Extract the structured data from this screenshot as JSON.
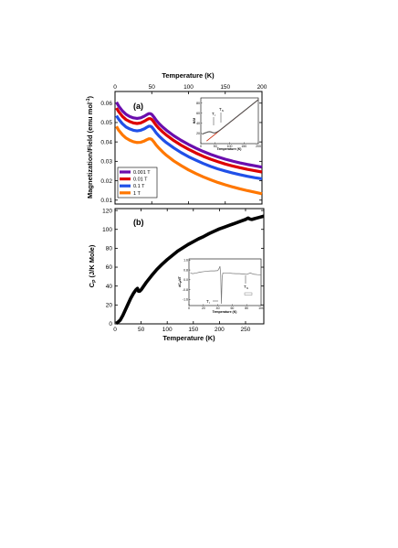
{
  "chart_data": [
    {
      "panel": "(a)",
      "type": "line",
      "xlabel": "Temperature (K)",
      "ylabel": "Magnetization/Field (emu mol",
      "ylabel_sup": "-1",
      "ylabel_close": ")",
      "xlim": [
        0,
        200
      ],
      "ylim": [
        0.008,
        0.066
      ],
      "xticks": [
        0,
        50,
        100,
        150,
        200
      ],
      "yticks": [
        0.01,
        0.02,
        0.03,
        0.04,
        0.05,
        0.06
      ],
      "ytick_labels": [
        "0.01",
        "0.02",
        "0.03",
        "0.04",
        "0.05",
        "0.06"
      ],
      "legend_position": "bottom-left",
      "x": [
        2,
        5,
        10,
        15,
        20,
        25,
        30,
        35,
        40,
        43,
        46,
        48,
        50,
        53,
        56,
        60,
        65,
        70,
        80,
        90,
        100,
        110,
        120,
        130,
        140,
        150,
        160,
        170,
        180,
        190,
        200
      ],
      "series": [
        {
          "name": "0.001 T",
          "color": "#6a0dad",
          "values": [
            0.0605,
            0.0585,
            0.056,
            0.0542,
            0.0531,
            0.0524,
            0.0521,
            0.0524,
            0.0533,
            0.054,
            0.0546,
            0.0546,
            0.0542,
            0.0528,
            0.0512,
            0.0494,
            0.0476,
            0.046,
            0.0432,
            0.0408,
            0.0387,
            0.0368,
            0.0351,
            0.0336,
            0.0323,
            0.0311,
            0.0301,
            0.0292,
            0.0284,
            0.0277,
            0.027
          ]
        },
        {
          "name": "0.01 T",
          "color": "#dd0000",
          "values": [
            0.0575,
            0.0556,
            0.0532,
            0.0515,
            0.0505,
            0.0498,
            0.0495,
            0.0498,
            0.0507,
            0.0514,
            0.052,
            0.052,
            0.0516,
            0.0502,
            0.0486,
            0.0469,
            0.0451,
            0.0435,
            0.0407,
            0.0383,
            0.0362,
            0.0343,
            0.0326,
            0.0311,
            0.0298,
            0.0286,
            0.0276,
            0.0267,
            0.0259,
            0.0252,
            0.0245
          ]
        },
        {
          "name": "0.1 T",
          "color": "#2050e8",
          "values": [
            0.0535,
            0.0517,
            0.0494,
            0.0477,
            0.0467,
            0.046,
            0.0457,
            0.046,
            0.0468,
            0.0475,
            0.0481,
            0.0481,
            0.0477,
            0.0463,
            0.0447,
            0.043,
            0.0412,
            0.0396,
            0.0369,
            0.0345,
            0.0324,
            0.0306,
            0.0289,
            0.0274,
            0.0261,
            0.025,
            0.024,
            0.0231,
            0.0223,
            0.0216,
            0.021
          ]
        },
        {
          "name": "1 T",
          "color": "#ff7700",
          "values": [
            0.048,
            0.046,
            0.0437,
            0.042,
            0.0409,
            0.0401,
            0.0397,
            0.0398,
            0.0405,
            0.0411,
            0.0416,
            0.0416,
            0.0413,
            0.04,
            0.0384,
            0.0367,
            0.0348,
            0.0331,
            0.0302,
            0.0278,
            0.0256,
            0.0237,
            0.022,
            0.0205,
            0.0191,
            0.0179,
            0.0168,
            0.0158,
            0.0149,
            0.0141,
            0.0133
          ]
        }
      ],
      "inset": {
        "type": "line",
        "xlabel": "Temperature (K)",
        "ylabel": "H/M",
        "xlim": [
          0,
          200
        ],
        "ylim": [
          0,
          90
        ],
        "xticks": [
          0,
          50,
          100,
          150,
          200
        ],
        "yticks": [
          20,
          40,
          60,
          80
        ],
        "annotations": [
          "T",
          "I",
          "T",
          "N"
        ],
        "annotation_x": [
          35,
          48
        ],
        "data_x": [
          5,
          10,
          15,
          20,
          25,
          30,
          35,
          40,
          45,
          50,
          55,
          60,
          70,
          80,
          90,
          100,
          110,
          120,
          130,
          140,
          150,
          160,
          170,
          180,
          190,
          200
        ],
        "data_y": [
          18.5,
          20.0,
          21.0,
          22.0,
          23.0,
          23.5,
          23.0,
          22.0,
          21.0,
          21.5,
          22.5,
          24.0,
          28.0,
          32.5,
          37.0,
          41.5,
          46.0,
          50.5,
          55.0,
          59.5,
          64.0,
          68.5,
          73.0,
          77.5,
          82.0,
          86.5
        ],
        "fit_x": [
          20,
          200
        ],
        "fit_y": [
          5.0,
          86.5
        ],
        "data_color": "#555555",
        "fit_color": "#cc2200"
      }
    },
    {
      "panel": "(b)",
      "type": "line",
      "xlabel": "Temperature (K)",
      "ylabel": "C",
      "ylabel_sub": "P",
      "ylabel_rest": " (J/K Mole)",
      "xlim": [
        0,
        285
      ],
      "ylim": [
        0,
        122
      ],
      "xticks": [
        0,
        50,
        100,
        150,
        200,
        250
      ],
      "yticks": [
        0,
        20,
        40,
        60,
        80,
        100,
        120
      ],
      "x": [
        2,
        5,
        10,
        15,
        20,
        25,
        30,
        35,
        40,
        43,
        45,
        47,
        50,
        55,
        60,
        70,
        80,
        90,
        100,
        110,
        120,
        130,
        140,
        150,
        160,
        170,
        180,
        190,
        200,
        210,
        220,
        230,
        240,
        250,
        255,
        258,
        262,
        268,
        275,
        285
      ],
      "values": [
        0.5,
        1.5,
        4,
        9,
        15,
        21,
        27,
        32,
        36,
        37.5,
        34.5,
        34.5,
        36,
        40,
        44,
        51,
        57.5,
        63,
        68,
        72.5,
        77,
        80.5,
        84,
        87,
        90,
        92.5,
        95.5,
        98,
        100.5,
        102.5,
        104.5,
        106.5,
        108.5,
        110.5,
        112,
        111,
        110.5,
        111.5,
        112.5,
        114
      ],
      "color": "#000000",
      "inset": {
        "type": "line",
        "xlabel": "Temperature (K)",
        "ylabel": "dC",
        "ylabel_sub": "P",
        "ylabel_rest": "/dT",
        "xlim": [
          0,
          100
        ],
        "ylim": [
          -2.1,
          1.7
        ],
        "xticks": [
          0,
          20,
          40,
          60,
          80,
          100
        ],
        "yticks": [
          -1.6,
          -0.8,
          0.0,
          0.8,
          1.6
        ],
        "ytick_labels": [
          "-1.6",
          "-0.8",
          "0.0",
          "0.8",
          "1.6"
        ],
        "annotations": [
          "T",
          "I",
          "T",
          "N"
        ],
        "annotation_x": [
          44,
          88
        ],
        "x": [
          2,
          5,
          10,
          15,
          20,
          25,
          30,
          35,
          40,
          42,
          43,
          44,
          45,
          46,
          47,
          50,
          55,
          60,
          65,
          70,
          75,
          80,
          85,
          90,
          95,
          100
        ],
        "values": [
          0.55,
          0.5,
          0.55,
          0.62,
          0.66,
          0.7,
          0.72,
          0.72,
          0.75,
          0.95,
          1.1,
          0.4,
          -1.95,
          0.2,
          0.55,
          0.55,
          0.55,
          0.52,
          0.5,
          0.5,
          0.47,
          0.44,
          0.55,
          0.45,
          0.42,
          0.4
        ],
        "color": "#777777"
      }
    }
  ]
}
